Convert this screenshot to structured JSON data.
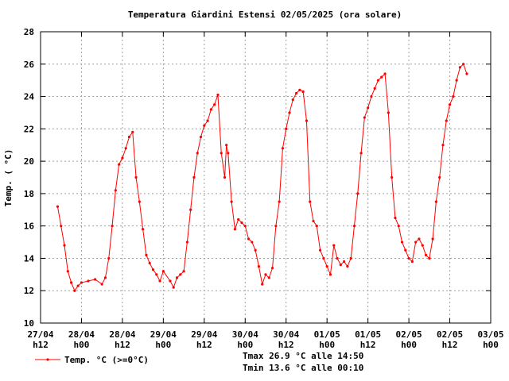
{
  "chart_data": {
    "type": "line",
    "title": "Temperatura Giardini Estensi 02/05/2025 (ora solare)",
    "y_label": "Temp. ( °C)",
    "annotations": [
      "Tmax 26.9 °C alle 14:50",
      "Tmin 13.6 °C alle 00:10"
    ],
    "grid": true,
    "legend": "bottom-left",
    "ylim": [
      10,
      28
    ],
    "yticks": [
      10,
      12,
      14,
      16,
      18,
      20,
      22,
      24,
      26,
      28
    ],
    "xlim": [
      "2025-04-27T12:00",
      "2025-05-03T00:00"
    ],
    "xticks": [
      {
        "value": "2025-04-27T12:00",
        "label": "27/04 h12"
      },
      {
        "value": "2025-04-28T00:00",
        "label": "28/04 h00"
      },
      {
        "value": "2025-04-28T12:00",
        "label": "28/04 h12"
      },
      {
        "value": "2025-04-29T00:00",
        "label": "29/04 h00"
      },
      {
        "value": "2025-04-29T12:00",
        "label": "29/04 h12"
      },
      {
        "value": "2025-04-30T00:00",
        "label": "30/04 h00"
      },
      {
        "value": "2025-04-30T12:00",
        "label": "30/04 h12"
      },
      {
        "value": "2025-05-01T00:00",
        "label": "01/05 h00"
      },
      {
        "value": "2025-05-01T12:00",
        "label": "01/05 h12"
      },
      {
        "value": "2025-05-02T00:00",
        "label": "02/05 h00"
      },
      {
        "value": "2025-05-02T12:00",
        "label": "02/05 h12"
      },
      {
        "value": "2025-05-03T00:00",
        "label": "03/05 h00"
      }
    ],
    "x": [
      "2025-04-27T17:00",
      "2025-04-27T18:00",
      "2025-04-27T19:00",
      "2025-04-27T20:00",
      "2025-04-27T21:00",
      "2025-04-27T22:00",
      "2025-04-27T23:00",
      "2025-04-28T00:00",
      "2025-04-28T02:00",
      "2025-04-28T04:00",
      "2025-04-28T06:00",
      "2025-04-28T07:00",
      "2025-04-28T08:00",
      "2025-04-28T09:00",
      "2025-04-28T10:00",
      "2025-04-28T11:00",
      "2025-04-28T12:00",
      "2025-04-28T13:00",
      "2025-04-28T14:00",
      "2025-04-28T15:00",
      "2025-04-28T16:00",
      "2025-04-28T17:00",
      "2025-04-28T18:00",
      "2025-04-28T19:00",
      "2025-04-28T20:00",
      "2025-04-28T21:00",
      "2025-04-28T22:00",
      "2025-04-28T23:00",
      "2025-04-29T00:00",
      "2025-04-29T02:00",
      "2025-04-29T03:00",
      "2025-04-29T04:00",
      "2025-04-29T05:00",
      "2025-04-29T06:00",
      "2025-04-29T07:00",
      "2025-04-29T08:00",
      "2025-04-29T09:00",
      "2025-04-29T10:00",
      "2025-04-29T11:00",
      "2025-04-29T12:00",
      "2025-04-29T13:00",
      "2025-04-29T14:00",
      "2025-04-29T15:00",
      "2025-04-29T16:00",
      "2025-04-29T17:00",
      "2025-04-29T18:00",
      "2025-04-29T18:30",
      "2025-04-29T19:00",
      "2025-04-29T20:00",
      "2025-04-29T21:00",
      "2025-04-29T22:00",
      "2025-04-29T23:00",
      "2025-04-30T00:00",
      "2025-04-30T01:00",
      "2025-04-30T02:00",
      "2025-04-30T03:00",
      "2025-04-30T04:00",
      "2025-04-30T05:00",
      "2025-04-30T06:00",
      "2025-04-30T07:00",
      "2025-04-30T08:00",
      "2025-04-30T09:00",
      "2025-04-30T10:00",
      "2025-04-30T11:00",
      "2025-04-30T12:00",
      "2025-04-30T13:00",
      "2025-04-30T14:00",
      "2025-04-30T15:00",
      "2025-04-30T16:00",
      "2025-04-30T17:00",
      "2025-04-30T18:00",
      "2025-04-30T19:00",
      "2025-04-30T20:00",
      "2025-04-30T21:00",
      "2025-04-30T22:00",
      "2025-04-30T23:00",
      "2025-05-01T00:00",
      "2025-05-01T01:00",
      "2025-05-01T02:00",
      "2025-05-01T03:00",
      "2025-05-01T04:00",
      "2025-05-01T05:00",
      "2025-05-01T06:00",
      "2025-05-01T07:00",
      "2025-05-01T08:00",
      "2025-05-01T09:00",
      "2025-05-01T10:00",
      "2025-05-01T11:00",
      "2025-05-01T12:00",
      "2025-05-01T13:00",
      "2025-05-01T14:00",
      "2025-05-01T15:00",
      "2025-05-01T16:00",
      "2025-05-01T17:00",
      "2025-05-01T18:00",
      "2025-05-01T19:00",
      "2025-05-01T20:00",
      "2025-05-01T21:00",
      "2025-05-01T22:00",
      "2025-05-01T23:00",
      "2025-05-02T00:00",
      "2025-05-02T01:00",
      "2025-05-02T02:00",
      "2025-05-02T03:00",
      "2025-05-02T04:00",
      "2025-05-02T05:00",
      "2025-05-02T06:00",
      "2025-05-02T07:00",
      "2025-05-02T08:00",
      "2025-05-02T09:00",
      "2025-05-02T10:00",
      "2025-05-02T11:00",
      "2025-05-02T12:00",
      "2025-05-02T13:00",
      "2025-05-02T14:00",
      "2025-05-02T15:00",
      "2025-05-02T16:00",
      "2025-05-02T17:00"
    ],
    "series": [
      {
        "name": "Temp. °C (>=0°C)",
        "color": "#ff0000",
        "values": [
          17.2,
          16.0,
          14.8,
          13.2,
          12.5,
          12.0,
          12.3,
          12.5,
          12.6,
          12.7,
          12.4,
          12.8,
          14.0,
          16.0,
          18.2,
          19.8,
          20.2,
          20.8,
          21.5,
          21.8,
          19.0,
          17.5,
          15.8,
          14.2,
          13.7,
          13.3,
          13.0,
          12.6,
          13.2,
          12.6,
          12.2,
          12.8,
          13.0,
          13.2,
          15.0,
          17.0,
          19.0,
          20.5,
          21.5,
          22.2,
          22.5,
          23.2,
          23.5,
          24.1,
          20.5,
          19.0,
          21.0,
          20.5,
          17.5,
          15.8,
          16.4,
          16.2,
          16.0,
          15.2,
          15.0,
          14.5,
          13.5,
          12.4,
          13.0,
          12.8,
          13.4,
          16.0,
          17.5,
          20.8,
          22.0,
          23.0,
          23.8,
          24.2,
          24.4,
          24.3,
          22.5,
          17.5,
          16.3,
          16.0,
          14.5,
          14.0,
          13.5,
          13.0,
          14.8,
          14.0,
          13.6,
          13.8,
          13.5,
          14.0,
          16.0,
          18.0,
          20.5,
          22.7,
          23.3,
          24.0,
          24.5,
          25.0,
          25.2,
          25.4,
          23.0,
          19.0,
          16.5,
          16.0,
          15.0,
          14.5,
          14.0,
          13.8,
          15.0,
          15.2,
          14.8,
          14.2,
          14.0,
          15.2,
          17.5,
          19.0,
          21.0,
          22.5,
          23.5,
          24.0,
          25.0,
          25.8,
          26.0,
          25.4
        ]
      }
    ]
  }
}
